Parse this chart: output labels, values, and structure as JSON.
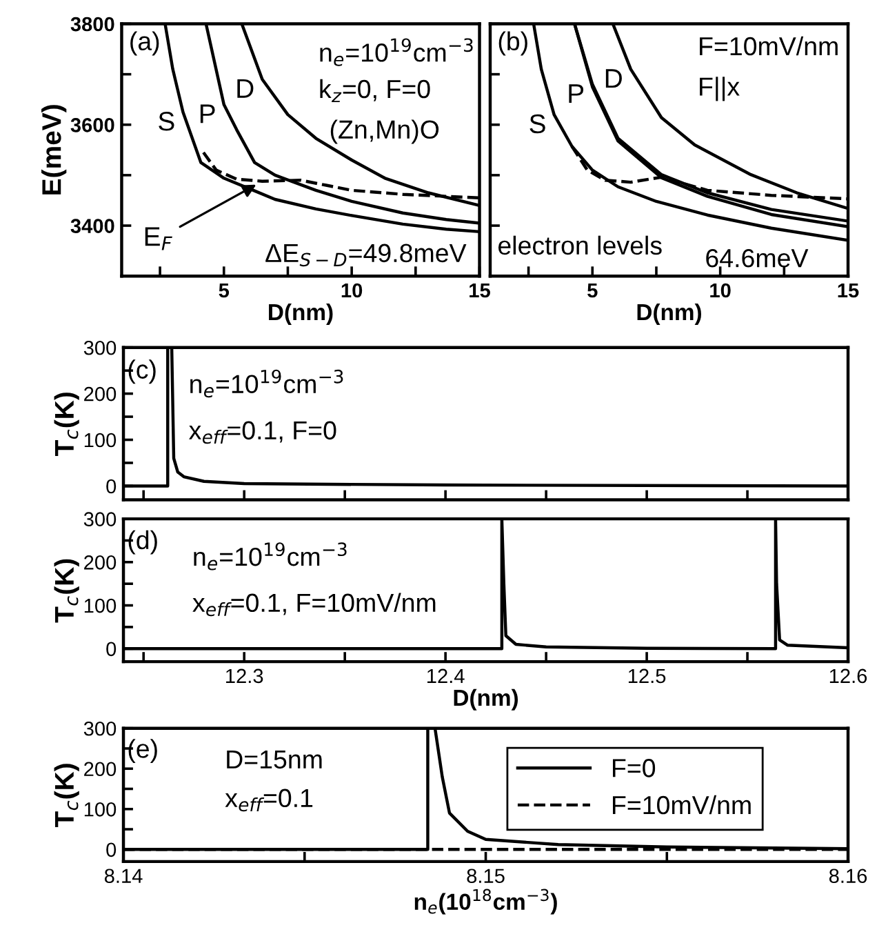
{
  "chart_data": [
    {
      "type": "line",
      "ylabel": "E(meV)",
      "xlabel": "D(nm)",
      "xlim": [
        1,
        15
      ],
      "ylim": [
        3300,
        3800
      ],
      "xticks": [
        {
          "value": 2.5,
          "label": null
        },
        5,
        {
          "value": 7.5,
          "label": null
        },
        10,
        {
          "value": 12.5,
          "label": null
        },
        15
      ],
      "yticks": [
        3400,
        {
          "value": 3500,
          "label": null
        },
        3600,
        {
          "value": 3700,
          "label": null
        },
        3800
      ],
      "series": [
        {
          "name": "S",
          "color": "#000000",
          "line_style": "solid",
          "x": [
            2.7,
            3.0,
            3.4,
            4.1,
            5,
            6.2,
            7,
            8.6,
            10,
            12,
            13.7,
            15
          ],
          "values": [
            3800,
            3710,
            3625,
            3525,
            3494,
            3469,
            3452,
            3433,
            3420,
            3403,
            3393,
            3388
          ]
        },
        {
          "name": "P",
          "color": "#000000",
          "line_style": "solid",
          "x": [
            4.3,
            5,
            5.5,
            6.2,
            7,
            8.6,
            10,
            12,
            13.7,
            15
          ],
          "values": [
            3800,
            3640,
            3590,
            3525,
            3500,
            3470,
            3448,
            3425,
            3412,
            3405
          ]
        },
        {
          "name": "D",
          "color": "#000000",
          "line_style": "solid",
          "x": [
            5.7,
            6.5,
            7.5,
            8.6,
            10,
            11.3,
            13,
            15
          ],
          "values": [
            3800,
            3690,
            3620,
            3573,
            3530,
            3494,
            3465,
            3440
          ]
        },
        {
          "color": "#000000",
          "line_style": "dashed",
          "x": [
            4.2,
            4.7,
            5.5,
            6.5,
            8,
            9,
            10,
            12,
            15
          ],
          "values": [
            3545,
            3510,
            3492,
            3488,
            3490,
            3480,
            3470,
            3462,
            3455
          ]
        }
      ],
      "annotations": [
        "(a)",
        "n$_{e}$=10$^{19}$cm$^{−3}$",
        "k$_{z}$=0, F=0",
        "(Zn,Mn)O",
        "ΔE$_{S−D}$=49.8meV",
        {
          "text": "E$_{F}$",
          "x": 6.4,
          "y": 3485
        }
      ]
    },
    {
      "type": "line",
      "xlabel": "D(nm)",
      "xlim": [
        1,
        15
      ],
      "ylim": [
        3300,
        3800
      ],
      "tick_labels": "x",
      "xticks": [
        {
          "value": 2.5,
          "label": null
        },
        5,
        {
          "value": 7.5,
          "label": null
        },
        10,
        {
          "value": 12.5,
          "label": null
        },
        15
      ],
      "yticks": [
        3400,
        {
          "value": 3500,
          "label": null
        },
        3600,
        {
          "value": 3700,
          "label": null
        },
        3800
      ],
      "series": [
        {
          "name": "S",
          "color": "#000000",
          "line_style": "solid",
          "x": [
            2.7,
            3.0,
            3.5,
            4.2,
            5,
            6,
            7.5,
            9.5,
            12,
            15
          ],
          "values": [
            3800,
            3710,
            3620,
            3557,
            3510,
            3477,
            3448,
            3421,
            3395,
            3371
          ]
        },
        {
          "name": "P",
          "color": "#000000",
          "line_style": "solid",
          "x": [
            4.3,
            5,
            6,
            7.7,
            9.5,
            12,
            15
          ],
          "values": [
            3800,
            3680,
            3573,
            3501,
            3465,
            3432,
            3409
          ]
        },
        {
          "color": "#000000",
          "line_style": "solid",
          "x": [
            4.3,
            5,
            6,
            7.7,
            9.5,
            12,
            15
          ],
          "values": [
            3800,
            3675,
            3568,
            3495,
            3458,
            3422,
            3398
          ]
        },
        {
          "name": "D",
          "color": "#000000",
          "line_style": "solid",
          "x": [
            5.8,
            6.5,
            7.7,
            9,
            11.2,
            13,
            15
          ],
          "values": [
            3800,
            3710,
            3614,
            3560,
            3501,
            3465,
            3434
          ]
        },
        {
          "color": "#000000",
          "line_style": "dashed",
          "x": [
            4.2,
            4.8,
            5.5,
            6.5,
            7.7,
            9.5,
            12,
            15
          ],
          "values": [
            3557,
            3510,
            3490,
            3486,
            3496,
            3470,
            3460,
            3453
          ]
        }
      ],
      "annotations": [
        "(b)",
        "F=10mV/nm",
        "F||x",
        "electron levels",
        "64.6meV"
      ]
    },
    {
      "type": "line",
      "ylabel": "T$_{c}$(K)",
      "xlim": [
        12.24,
        12.6
      ],
      "ylim": [
        -30,
        300
      ],
      "tick_labels": "y",
      "xticks": [
        {
          "value": 12.25,
          "label": null
        },
        12.3,
        {
          "value": 12.35,
          "label": null
        },
        12.4,
        {
          "value": 12.45,
          "label": null
        },
        12.5,
        {
          "value": 12.55,
          "label": null
        },
        12.6
      ],
      "yticks": [
        0,
        {
          "value": 50,
          "label": null
        },
        100,
        {
          "value": 150,
          "label": null
        },
        200,
        {
          "value": 250,
          "label": null
        },
        300
      ],
      "series": [
        {
          "color": "#000000",
          "line_style": "solid",
          "x": [
            12.24,
            12.262,
            12.262,
            12.264,
            12.265,
            12.267,
            12.27,
            12.28,
            12.3,
            12.4,
            12.6
          ],
          "values": [
            0,
            0,
            300,
            300,
            60,
            30,
            20,
            10,
            5,
            2,
            0
          ]
        }
      ],
      "annotations": [
        "(c)",
        "n$_{e}$=10$^{19}$cm$^{−3}$",
        "x$_{eff}$=0.1, F=0"
      ]
    },
    {
      "type": "line",
      "ylabel": "T$_{c}$(K)",
      "xlabel": "D(nm)",
      "xlim": [
        12.24,
        12.6
      ],
      "ylim": [
        -30,
        300
      ],
      "xticks": [
        {
          "value": 12.25,
          "label": null
        },
        12.3,
        {
          "value": 12.35,
          "label": null
        },
        12.4,
        {
          "value": 12.45,
          "label": null
        },
        12.5,
        {
          "value": 12.55,
          "label": null
        },
        12.6
      ],
      "yticks": [
        0,
        {
          "value": 50,
          "label": null
        },
        100,
        {
          "value": 150,
          "label": null
        },
        200,
        {
          "value": 250,
          "label": null
        },
        300
      ],
      "series": [
        {
          "color": "#000000",
          "line_style": "solid",
          "x": [
            12.24,
            12.428,
            12.428,
            12.429,
            12.43,
            12.435,
            12.45,
            12.5,
            12.564,
            12.564,
            12.5645,
            12.566,
            12.57,
            12.6
          ],
          "values": [
            0,
            0,
            300,
            150,
            30,
            10,
            4,
            1,
            0,
            300,
            150,
            20,
            8,
            2
          ]
        }
      ],
      "annotations": [
        "(d)",
        "n$_{e}$=10$^{19}$cm$^{−3}$",
        "x$_{eff}$=0.1, F=10mV/nm"
      ]
    },
    {
      "type": "line",
      "ylabel": "T$_{c}$(K)",
      "xlabel": "n$_{e}$(10$^{18}$cm$^{−3}$)",
      "xlim": [
        8.14,
        8.16
      ],
      "ylim": [
        -30,
        300
      ],
      "legend": "top right",
      "xticks": [
        8.14,
        {
          "value": 8.145,
          "label": null
        },
        8.15,
        {
          "value": 8.155,
          "label": null
        },
        8.16
      ],
      "yticks": [
        0,
        {
          "value": 50,
          "label": null
        },
        100,
        {
          "value": 150,
          "label": null
        },
        200,
        {
          "value": 250,
          "label": null
        },
        300
      ],
      "series": [
        {
          "name": "F=0",
          "color": "#000000",
          "line_style": "solid",
          "x": [
            8.14,
            8.1484,
            8.1484,
            8.1486,
            8.1488,
            8.149,
            8.1495,
            8.15,
            8.152,
            8.155,
            8.16
          ],
          "values": [
            0,
            0,
            300,
            300,
            180,
            90,
            45,
            25,
            12,
            6,
            2
          ]
        },
        {
          "name": "F=10mV/nm",
          "color": "#000000",
          "line_style": "dashed",
          "x": [
            8.14,
            8.15,
            8.16
          ],
          "values": [
            0,
            0,
            0
          ]
        }
      ],
      "annotations": [
        "(e)",
        "D=15nm",
        "x$_{eff}$=0.1"
      ]
    }
  ]
}
